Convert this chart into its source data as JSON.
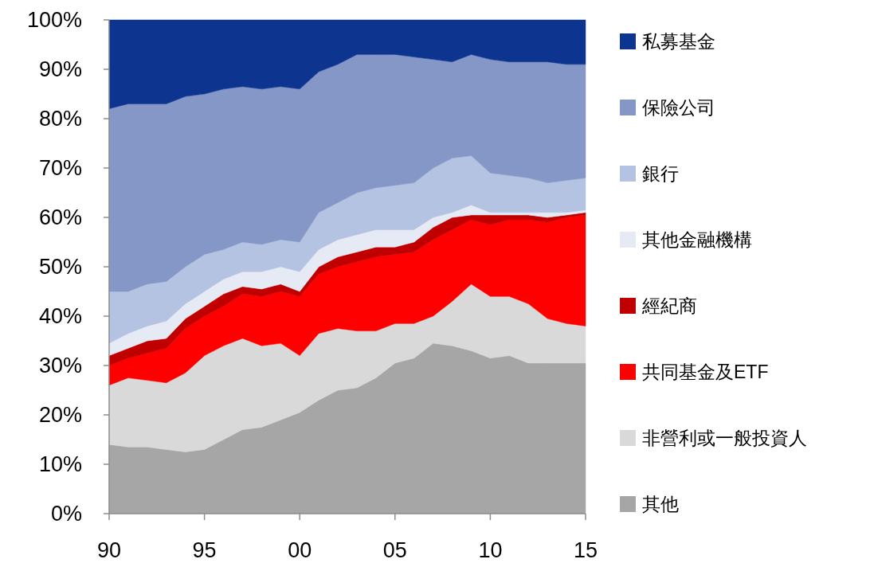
{
  "chart_data": {
    "type": "area",
    "stacked": true,
    "legend": "right",
    "x": [
      1990,
      1991,
      1992,
      1993,
      1994,
      1995,
      1996,
      1997,
      1998,
      1999,
      2000,
      2001,
      2002,
      2003,
      2004,
      2005,
      2006,
      2007,
      2008,
      2009,
      2010,
      2011,
      2012,
      2013,
      2014,
      2015
    ],
    "xlim": [
      1990,
      2015
    ],
    "xticks": [
      {
        "value": 1990,
        "label": "90"
      },
      {
        "value": 1995,
        "label": "95"
      },
      {
        "value": 2000,
        "label": "00"
      },
      {
        "value": 2005,
        "label": "05"
      },
      {
        "value": 2010,
        "label": "10"
      },
      {
        "value": 2015,
        "label": "15"
      }
    ],
    "ylim": [
      0,
      100
    ],
    "yticks": [
      {
        "value": 0,
        "label": "0%"
      },
      {
        "value": 10,
        "label": "10%"
      },
      {
        "value": 20,
        "label": "20%"
      },
      {
        "value": 30,
        "label": "30%"
      },
      {
        "value": 40,
        "label": "40%"
      },
      {
        "value": 50,
        "label": "50%"
      },
      {
        "value": 60,
        "label": "60%"
      },
      {
        "value": 70,
        "label": "70%"
      },
      {
        "value": 80,
        "label": "80%"
      },
      {
        "value": 90,
        "label": "90%"
      },
      {
        "value": 100,
        "label": "100%"
      }
    ],
    "series": [
      {
        "name": "其他",
        "color": "#a6a6a6",
        "values": [
          14,
          13.5,
          13.5,
          13,
          12.5,
          13,
          15,
          17,
          17.5,
          19,
          20.5,
          23,
          25,
          25.5,
          27.5,
          30.5,
          31.5,
          34.5,
          34,
          33,
          31.5,
          32,
          30.5,
          30.5,
          30.5,
          30.5
        ]
      },
      {
        "name": "非營利或一般投資人",
        "color": "#d9d9d9",
        "values": [
          12,
          14,
          13.5,
          13.5,
          16,
          19,
          19,
          18.5,
          16.5,
          15.5,
          11.5,
          13.5,
          12.5,
          11.5,
          9.5,
          8,
          7,
          5.5,
          9,
          13.5,
          12.5,
          12,
          12,
          9,
          8,
          7.5
        ]
      },
      {
        "name": "共同基金及ETF",
        "color": "#ff0000",
        "values": [
          4,
          4,
          5.5,
          7,
          9,
          8,
          8,
          9,
          10,
          10.5,
          12,
          12,
          12.5,
          14,
          15,
          14,
          14.5,
          15.5,
          14.5,
          13,
          14.5,
          15.5,
          17,
          19.5,
          21.5,
          22.5
        ]
      },
      {
        "name": "經紀商",
        "color": "#c00000",
        "values": [
          2,
          2,
          2.5,
          2,
          2,
          2,
          2.5,
          1.5,
          1.5,
          1.5,
          1,
          1.5,
          2,
          2,
          2,
          1.5,
          2,
          2.5,
          2.5,
          1,
          2,
          1,
          1,
          1,
          0.5,
          0.5
        ]
      },
      {
        "name": "其他金融機構",
        "color": "#e6eaf4",
        "values": [
          2.5,
          3,
          3,
          3.5,
          3,
          3,
          3,
          3,
          3.5,
          3.5,
          4,
          3.5,
          3.5,
          3.5,
          3.5,
          3.5,
          2.5,
          2,
          1,
          2,
          0.5,
          0.5,
          0.5,
          1,
          0.5,
          0.5
        ]
      },
      {
        "name": "銀行",
        "color": "#b4c3e2",
        "values": [
          10.5,
          8.5,
          8.5,
          8,
          7.5,
          7.5,
          6,
          6,
          5.5,
          5.5,
          6,
          7.5,
          7.5,
          8.5,
          8.5,
          9,
          9.5,
          10,
          11,
          10,
          8,
          7.5,
          7,
          6,
          6.5,
          6.5
        ]
      },
      {
        "name": "保險公司",
        "color": "#8497c6",
        "values": [
          37,
          38,
          36.5,
          36,
          34.5,
          32.5,
          32.5,
          31.5,
          31.5,
          31,
          31,
          28.5,
          28,
          28,
          27,
          26.5,
          25.5,
          22,
          19.5,
          20.5,
          23,
          23,
          23.5,
          24.5,
          23.5,
          23
        ]
      },
      {
        "name": "私募基金",
        "color": "#0d3590",
        "values": [
          18,
          17,
          17,
          17,
          15.5,
          15,
          14,
          13.5,
          14,
          13.5,
          14,
          10.5,
          9,
          7,
          7,
          7,
          7.5,
          8,
          8.5,
          7,
          8,
          8.5,
          8.5,
          8.5,
          9,
          9
        ]
      }
    ]
  }
}
